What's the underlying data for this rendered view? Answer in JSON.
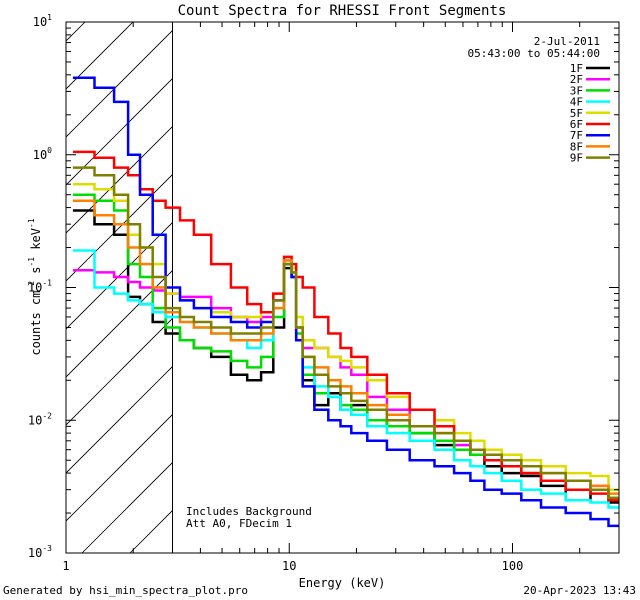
{
  "footer": {
    "generated_by": "Generated by hsi_min_spectra_plot.pro",
    "timestamp": "20-Apr-2023 13:43"
  },
  "chart_data": {
    "type": "line",
    "title": "Count Spectra for RHESSI Front Segments",
    "xlabel": "Energy (keV)",
    "ylabel_parts": [
      "counts cm",
      "-2",
      " s",
      "-1",
      " keV",
      "-1"
    ],
    "xscale": "log",
    "yscale": "log",
    "xlim": [
      1,
      300
    ],
    "ylim": [
      0.001,
      10
    ],
    "x_ticks": [
      {
        "v": 1,
        "label": "1"
      },
      {
        "v": 10,
        "label": "10"
      },
      {
        "v": 100,
        "label": "100"
      }
    ],
    "y_ticks": [
      {
        "v": 0.001,
        "base": "10",
        "exp": "-3"
      },
      {
        "v": 0.01,
        "base": "10",
        "exp": "-2"
      },
      {
        "v": 0.1,
        "base": "10",
        "exp": "-1"
      },
      {
        "v": 1,
        "base": "10",
        "exp": "0"
      },
      {
        "v": 10,
        "base": "10",
        "exp": "1"
      }
    ],
    "hatched_region_xmax": 3,
    "date_text": "2-Jul-2011",
    "time_text": "05:43:00 to 05:44:00",
    "annotations": [
      "Includes Background",
      "Att A0, FDecim 1"
    ],
    "series": [
      {
        "name": "1F",
        "color": "#000000",
        "x": [
          1.2,
          1.5,
          1.8,
          2.0,
          2.3,
          2.6,
          3.0,
          3.5,
          4.0,
          5.0,
          6.0,
          7.0,
          8.0,
          9.0,
          10.0,
          10.5,
          11.0,
          12.0,
          14.0,
          16.0,
          18.0,
          20.0,
          25.0,
          30.0,
          40.0,
          50.0,
          60.0,
          70.0,
          80.0,
          100.0,
          120.0,
          150.0,
          200.0,
          250.0,
          290.0
        ],
        "y": [
          0.38,
          0.3,
          0.25,
          0.085,
          0.075,
          0.055,
          0.045,
          0.04,
          0.035,
          0.03,
          0.022,
          0.02,
          0.023,
          0.05,
          0.14,
          0.12,
          0.04,
          0.02,
          0.013,
          0.016,
          0.012,
          0.013,
          0.009,
          0.01,
          0.008,
          0.0065,
          0.006,
          0.0055,
          0.0045,
          0.004,
          0.0038,
          0.0032,
          0.0025,
          0.003,
          0.0024
        ]
      },
      {
        "name": "2F",
        "color": "#ff00ff",
        "x": [
          1.2,
          1.5,
          1.8,
          2.0,
          2.3,
          2.6,
          3.0,
          3.5,
          4.0,
          5.0,
          6.0,
          7.0,
          8.0,
          9.0,
          10.0,
          10.5,
          11.0,
          12.0,
          14.0,
          16.0,
          18.0,
          20.0,
          25.0,
          30.0,
          40.0,
          50.0,
          60.0,
          70.0,
          80.0,
          100.0,
          120.0,
          150.0,
          200.0,
          250.0,
          290.0
        ],
        "y": [
          0.135,
          0.13,
          0.12,
          0.11,
          0.1,
          0.095,
          0.09,
          0.085,
          0.085,
          0.07,
          0.06,
          0.055,
          0.06,
          0.08,
          0.16,
          0.13,
          0.05,
          0.035,
          0.035,
          0.03,
          0.025,
          0.022,
          0.015,
          0.012,
          0.009,
          0.007,
          0.0065,
          0.006,
          0.005,
          0.0045,
          0.004,
          0.0035,
          0.003,
          0.0032,
          0.0025
        ]
      },
      {
        "name": "3F",
        "color": "#00dd00",
        "x": [
          1.2,
          1.5,
          1.8,
          2.0,
          2.3,
          2.6,
          3.0,
          3.5,
          4.0,
          5.0,
          6.0,
          7.0,
          8.0,
          9.0,
          10.0,
          10.5,
          11.0,
          12.0,
          14.0,
          16.0,
          18.0,
          20.0,
          25.0,
          30.0,
          40.0,
          50.0,
          60.0,
          70.0,
          80.0,
          100.0,
          120.0,
          150.0,
          200.0,
          250.0,
          290.0
        ],
        "y": [
          0.5,
          0.45,
          0.38,
          0.15,
          0.12,
          0.07,
          0.05,
          0.04,
          0.035,
          0.033,
          0.028,
          0.025,
          0.03,
          0.06,
          0.15,
          0.13,
          0.045,
          0.022,
          0.016,
          0.015,
          0.013,
          0.012,
          0.01,
          0.009,
          0.008,
          0.007,
          0.006,
          0.0055,
          0.005,
          0.0045,
          0.004,
          0.0035,
          0.003,
          0.003,
          0.0026
        ]
      },
      {
        "name": "4F",
        "color": "#00ffff",
        "x": [
          1.2,
          1.5,
          1.8,
          2.0,
          2.3,
          2.6,
          3.0,
          3.5,
          4.0,
          5.0,
          6.0,
          7.0,
          8.0,
          9.0,
          10.0,
          10.5,
          11.0,
          12.0,
          14.0,
          16.0,
          18.0,
          20.0,
          25.0,
          30.0,
          40.0,
          50.0,
          60.0,
          70.0,
          80.0,
          100.0,
          120.0,
          150.0,
          200.0,
          250.0,
          290.0
        ],
        "y": [
          0.19,
          0.1,
          0.09,
          0.08,
          0.075,
          0.065,
          0.06,
          0.055,
          0.05,
          0.045,
          0.04,
          0.035,
          0.04,
          0.07,
          0.16,
          0.13,
          0.05,
          0.025,
          0.018,
          0.015,
          0.012,
          0.011,
          0.009,
          0.008,
          0.007,
          0.006,
          0.005,
          0.0045,
          0.004,
          0.0035,
          0.003,
          0.0028,
          0.0025,
          0.0024,
          0.0022
        ]
      },
      {
        "name": "5F",
        "color": "#dddd00",
        "x": [
          1.2,
          1.5,
          1.8,
          2.0,
          2.3,
          2.6,
          3.0,
          3.5,
          4.0,
          5.0,
          6.0,
          7.0,
          8.0,
          9.0,
          10.0,
          10.5,
          11.0,
          12.0,
          14.0,
          16.0,
          18.0,
          20.0,
          25.0,
          30.0,
          40.0,
          50.0,
          60.0,
          70.0,
          80.0,
          100.0,
          120.0,
          150.0,
          200.0,
          250.0,
          290.0
        ],
        "y": [
          0.6,
          0.55,
          0.45,
          0.25,
          0.2,
          0.15,
          0.09,
          0.08,
          0.07,
          0.065,
          0.06,
          0.06,
          0.065,
          0.09,
          0.17,
          0.14,
          0.06,
          0.04,
          0.035,
          0.03,
          0.028,
          0.025,
          0.02,
          0.015,
          0.012,
          0.01,
          0.008,
          0.007,
          0.006,
          0.0055,
          0.005,
          0.0045,
          0.004,
          0.0038,
          0.003
        ]
      },
      {
        "name": "6F",
        "color": "#ff0000",
        "x": [
          1.2,
          1.5,
          1.8,
          2.0,
          2.3,
          2.6,
          3.0,
          3.5,
          4.0,
          5.0,
          6.0,
          7.0,
          8.0,
          9.0,
          10.0,
          10.5,
          11.0,
          12.0,
          14.0,
          16.0,
          18.0,
          20.0,
          25.0,
          30.0,
          40.0,
          50.0,
          60.0,
          70.0,
          80.0,
          100.0,
          120.0,
          150.0,
          200.0,
          250.0,
          290.0
        ],
        "y": [
          1.05,
          0.95,
          0.8,
          0.7,
          0.55,
          0.45,
          0.4,
          0.32,
          0.25,
          0.15,
          0.1,
          0.075,
          0.065,
          0.09,
          0.17,
          0.15,
          0.12,
          0.1,
          0.06,
          0.045,
          0.035,
          0.03,
          0.022,
          0.016,
          0.012,
          0.009,
          0.007,
          0.006,
          0.005,
          0.0045,
          0.004,
          0.0035,
          0.003,
          0.0028,
          0.0025
        ]
      },
      {
        "name": "7F",
        "color": "#0000ff",
        "x": [
          1.2,
          1.5,
          1.8,
          2.0,
          2.3,
          2.6,
          3.0,
          3.5,
          4.0,
          5.0,
          6.0,
          7.0,
          8.0,
          9.0,
          10.0,
          10.5,
          11.0,
          12.0,
          14.0,
          16.0,
          18.0,
          20.0,
          25.0,
          30.0,
          40.0,
          50.0,
          60.0,
          70.0,
          80.0,
          100.0,
          120.0,
          150.0,
          200.0,
          250.0,
          290.0
        ],
        "y": [
          3.8,
          3.2,
          2.5,
          1.0,
          0.5,
          0.25,
          0.1,
          0.08,
          0.07,
          0.06,
          0.055,
          0.05,
          0.055,
          0.08,
          0.15,
          0.12,
          0.04,
          0.018,
          0.012,
          0.01,
          0.009,
          0.008,
          0.007,
          0.006,
          0.005,
          0.0045,
          0.004,
          0.0035,
          0.003,
          0.0028,
          0.0025,
          0.0022,
          0.002,
          0.0018,
          0.0016
        ]
      },
      {
        "name": "8F",
        "color": "#ff8000",
        "x": [
          1.2,
          1.5,
          1.8,
          2.0,
          2.3,
          2.6,
          3.0,
          3.5,
          4.0,
          5.0,
          6.0,
          7.0,
          8.0,
          9.0,
          10.0,
          10.5,
          11.0,
          12.0,
          14.0,
          16.0,
          18.0,
          20.0,
          25.0,
          30.0,
          40.0,
          50.0,
          60.0,
          70.0,
          80.0,
          100.0,
          120.0,
          150.0,
          200.0,
          250.0,
          290.0
        ],
        "y": [
          0.45,
          0.35,
          0.3,
          0.2,
          0.15,
          0.1,
          0.065,
          0.055,
          0.05,
          0.045,
          0.04,
          0.04,
          0.045,
          0.07,
          0.16,
          0.13,
          0.05,
          0.03,
          0.025,
          0.02,
          0.018,
          0.016,
          0.013,
          0.011,
          0.009,
          0.008,
          0.007,
          0.006,
          0.0055,
          0.005,
          0.0045,
          0.004,
          0.0035,
          0.0032,
          0.0028
        ]
      },
      {
        "name": "9F",
        "color": "#808000",
        "x": [
          1.2,
          1.5,
          1.8,
          2.0,
          2.3,
          2.6,
          3.0,
          3.5,
          4.0,
          5.0,
          6.0,
          7.0,
          8.0,
          9.0,
          10.0,
          10.5,
          11.0,
          12.0,
          14.0,
          16.0,
          18.0,
          20.0,
          25.0,
          30.0,
          40.0,
          50.0,
          60.0,
          70.0,
          80.0,
          100.0,
          120.0,
          150.0,
          200.0,
          250.0,
          290.0
        ],
        "y": [
          0.8,
          0.7,
          0.5,
          0.3,
          0.2,
          0.12,
          0.07,
          0.06,
          0.055,
          0.05,
          0.045,
          0.045,
          0.05,
          0.08,
          0.15,
          0.13,
          0.05,
          0.03,
          0.022,
          0.018,
          0.016,
          0.014,
          0.012,
          0.01,
          0.009,
          0.008,
          0.007,
          0.006,
          0.0055,
          0.005,
          0.0045,
          0.004,
          0.0035,
          0.003,
          0.0026
        ]
      }
    ]
  }
}
